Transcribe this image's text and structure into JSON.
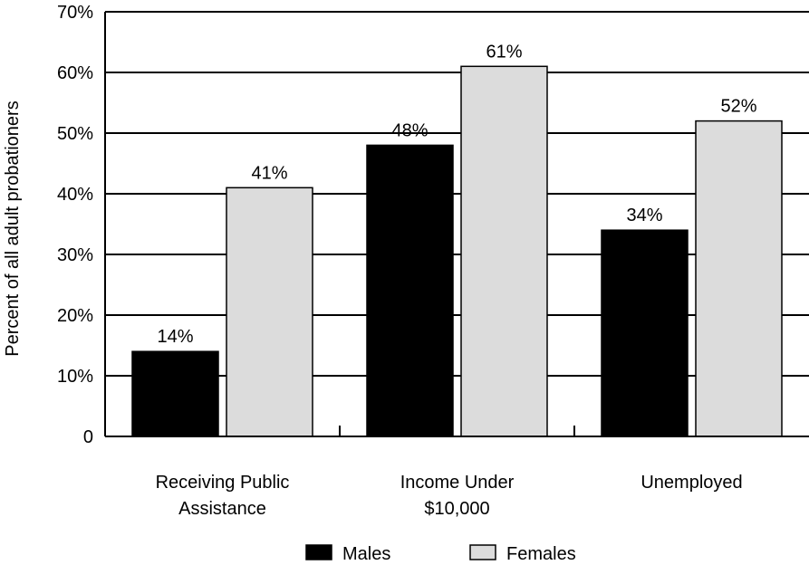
{
  "chart_data": {
    "type": "bar",
    "title": "",
    "xlabel": "",
    "ylabel": "Percent of all adult probationers",
    "categories": [
      [
        "Receiving Public",
        "Assistance"
      ],
      [
        "Income Under",
        "$10,000"
      ],
      [
        "Unemployed"
      ]
    ],
    "series": [
      {
        "name": "Males",
        "values": [
          14,
          48,
          34
        ],
        "labels": [
          "14%",
          "48%",
          "34%"
        ],
        "color": "#000000"
      },
      {
        "name": "Females",
        "values": [
          41,
          61,
          52
        ],
        "labels": [
          "41%",
          "61%",
          "52%"
        ],
        "color": "#dcdcdc"
      }
    ],
    "ylim": [
      0,
      70
    ],
    "yticks": [
      0,
      10,
      20,
      30,
      40,
      50,
      60,
      70
    ],
    "ytick_labels": [
      "0",
      "10%",
      "20%",
      "30%",
      "40%",
      "50%",
      "60%",
      "70%"
    ],
    "grid": true,
    "legend_position": "bottom"
  }
}
